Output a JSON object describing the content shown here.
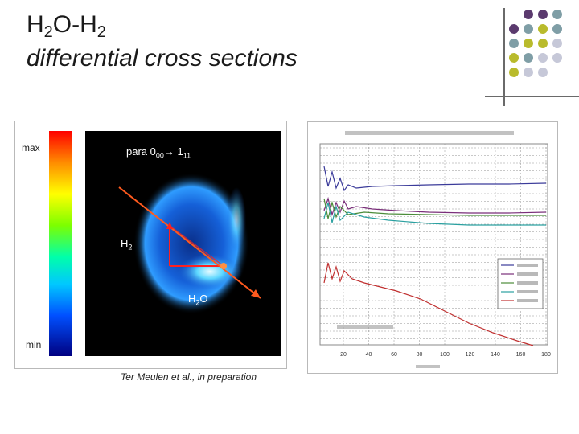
{
  "slide": {
    "title_main": "H",
    "title_sub1": "2",
    "title_mid": "O-H",
    "title_sub2": "2",
    "subtitle": "differential cross sections"
  },
  "decor": {
    "dot_colors": [
      "#5b3a6e",
      "#7f9ea6",
      "#b9bb2c",
      "#c6c8d8"
    ]
  },
  "left_figure": {
    "colorbar_max": "max",
    "colorbar_min": "min",
    "transition_pre": "para 0",
    "transition_sub1": "00",
    "transition_arrow": "→ 1",
    "transition_sub2": "11",
    "h2_label_main": "H",
    "h2_label_sub": "2",
    "h2o_label_main": "H",
    "h2o_label_sub": "2",
    "h2o_label_end": "O",
    "citation": "Ter Meulen et al., in preparation"
  },
  "right_figure": {
    "x_ticks": [
      "20",
      "40",
      "60",
      "80",
      "100",
      "120",
      "140",
      "160",
      "180"
    ],
    "series_colors": [
      "#3b3b9a",
      "#7a2f7a",
      "#4c8c3a",
      "#2aa0a0",
      "#c03030"
    ]
  }
}
